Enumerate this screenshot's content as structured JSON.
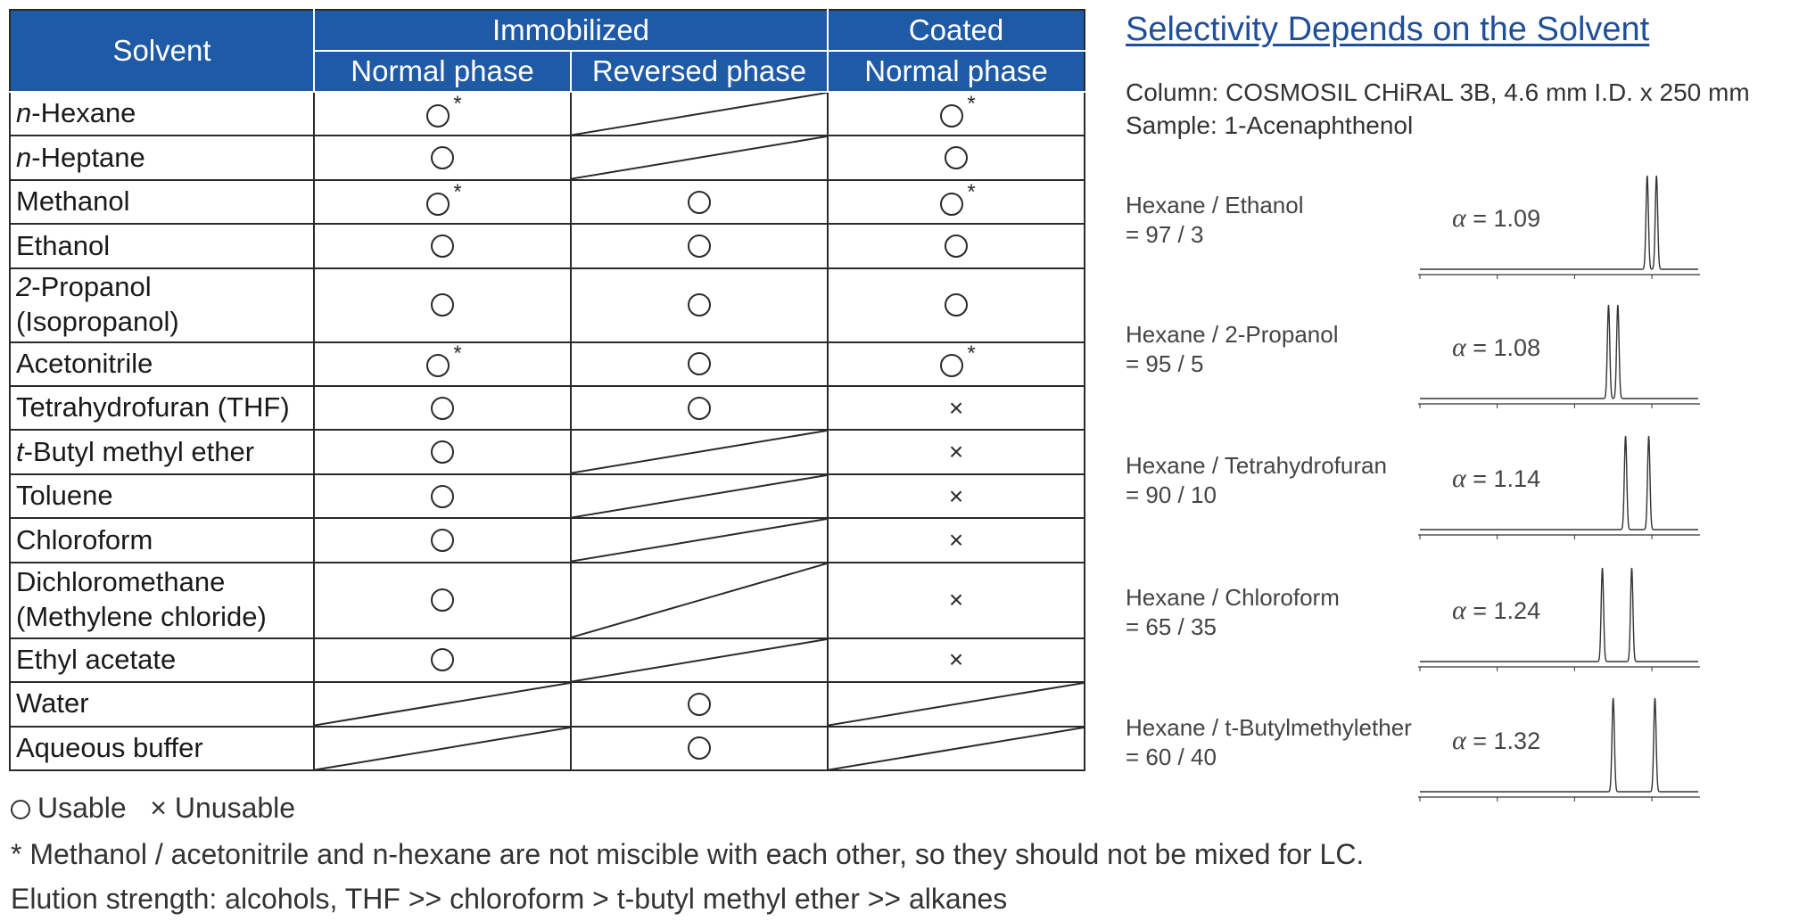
{
  "table": {
    "header": {
      "solvent": "Solvent",
      "immobilized": "Immobilized",
      "coated": "Coated",
      "normal_phase_1": "Normal phase",
      "reversed_phase": "Reversed phase",
      "normal_phase_2": "Normal phase"
    },
    "rows": [
      {
        "prefix": "n",
        "name": "-Hexane",
        "imm_normal": "circle*",
        "imm_reversed": "na",
        "coated": "circle*"
      },
      {
        "prefix": "n",
        "name": "-Heptane",
        "imm_normal": "circle",
        "imm_reversed": "na",
        "coated": "circle"
      },
      {
        "prefix": "",
        "name": "Methanol",
        "imm_normal": "circle*",
        "imm_reversed": "circle",
        "coated": "circle*"
      },
      {
        "prefix": "",
        "name": "Ethanol",
        "imm_normal": "circle",
        "imm_reversed": "circle",
        "coated": "circle"
      },
      {
        "prefix": "2",
        "name": "-Propanol",
        "line2": "(Isopropanol)",
        "imm_normal": "circle",
        "imm_reversed": "circle",
        "coated": "circle"
      },
      {
        "prefix": "",
        "name": "Acetonitrile",
        "imm_normal": "circle*",
        "imm_reversed": "circle",
        "coated": "circle*"
      },
      {
        "prefix": "",
        "name": "Tetrahydrofuran (THF)",
        "imm_normal": "circle",
        "imm_reversed": "circle",
        "coated": "cross"
      },
      {
        "prefix": "t",
        "name": "-Butyl methyl ether",
        "imm_normal": "circle",
        "imm_reversed": "na",
        "coated": "cross"
      },
      {
        "prefix": "",
        "name": "Toluene",
        "imm_normal": "circle",
        "imm_reversed": "na",
        "coated": "cross"
      },
      {
        "prefix": "",
        "name": "Chloroform",
        "imm_normal": "circle",
        "imm_reversed": "na",
        "coated": "cross"
      },
      {
        "prefix": "",
        "name": "Dichloromethane",
        "line2": "(Methylene chloride)",
        "imm_normal": "circle",
        "imm_reversed": "na",
        "coated": "cross"
      },
      {
        "prefix": "",
        "name": "Ethyl acetate",
        "imm_normal": "circle",
        "imm_reversed": "na",
        "coated": "cross"
      },
      {
        "prefix": "",
        "name": "Water",
        "imm_normal": "na",
        "imm_reversed": "circle",
        "coated": "na"
      },
      {
        "prefix": "",
        "name": "Aqueous buffer",
        "imm_normal": "na",
        "imm_reversed": "circle",
        "coated": "na"
      }
    ],
    "star_symbol": "*",
    "cross_symbol": "×"
  },
  "legend": {
    "usable": "Usable",
    "cross_symbol": "×",
    "unusable": "Unusable"
  },
  "note": "* Methanol / acetonitrile and n-hexane are not miscible with each other, so they should not be mixed for LC.",
  "elution": "Elution strength: alcohols, THF >> chloroform > t-butyl methyl ether >> alkanes",
  "selectivity": {
    "title": "Selectivity Depends on the Solvent",
    "column": "Column:     COSMOSIL CHiRAL 3B, 4.6 mm I.D. x 250 mm",
    "sample": "Sample: 1-Acenaphthenol",
    "alpha_symbol": "α",
    "conditions": [
      {
        "label": "Hexane / Ethanol",
        "ratio": " = 97 / 3",
        "alpha": "= 1.09",
        "peaks": [
          14.7,
          15.3
        ]
      },
      {
        "label": "Hexane / 2-Propanol",
        "ratio": " = 95 / 5",
        "alpha": "= 1.08",
        "peaks": [
          12.2,
          12.8
        ]
      },
      {
        "label": "Hexane / Tetrahydrofuran",
        "ratio": " = 90 / 10",
        "alpha": "= 1.14",
        "peaks": [
          13.3,
          14.8
        ]
      },
      {
        "label": "Hexane / Chloroform",
        "ratio": " = 65 / 35",
        "alpha": "= 1.24",
        "peaks": [
          11.8,
          13.7
        ]
      },
      {
        "label": "Hexane / t-Butylmethylether",
        "ratio": " = 60 / 40",
        "alpha": "= 1.32",
        "peaks": [
          12.5,
          15.2
        ]
      }
    ]
  }
}
